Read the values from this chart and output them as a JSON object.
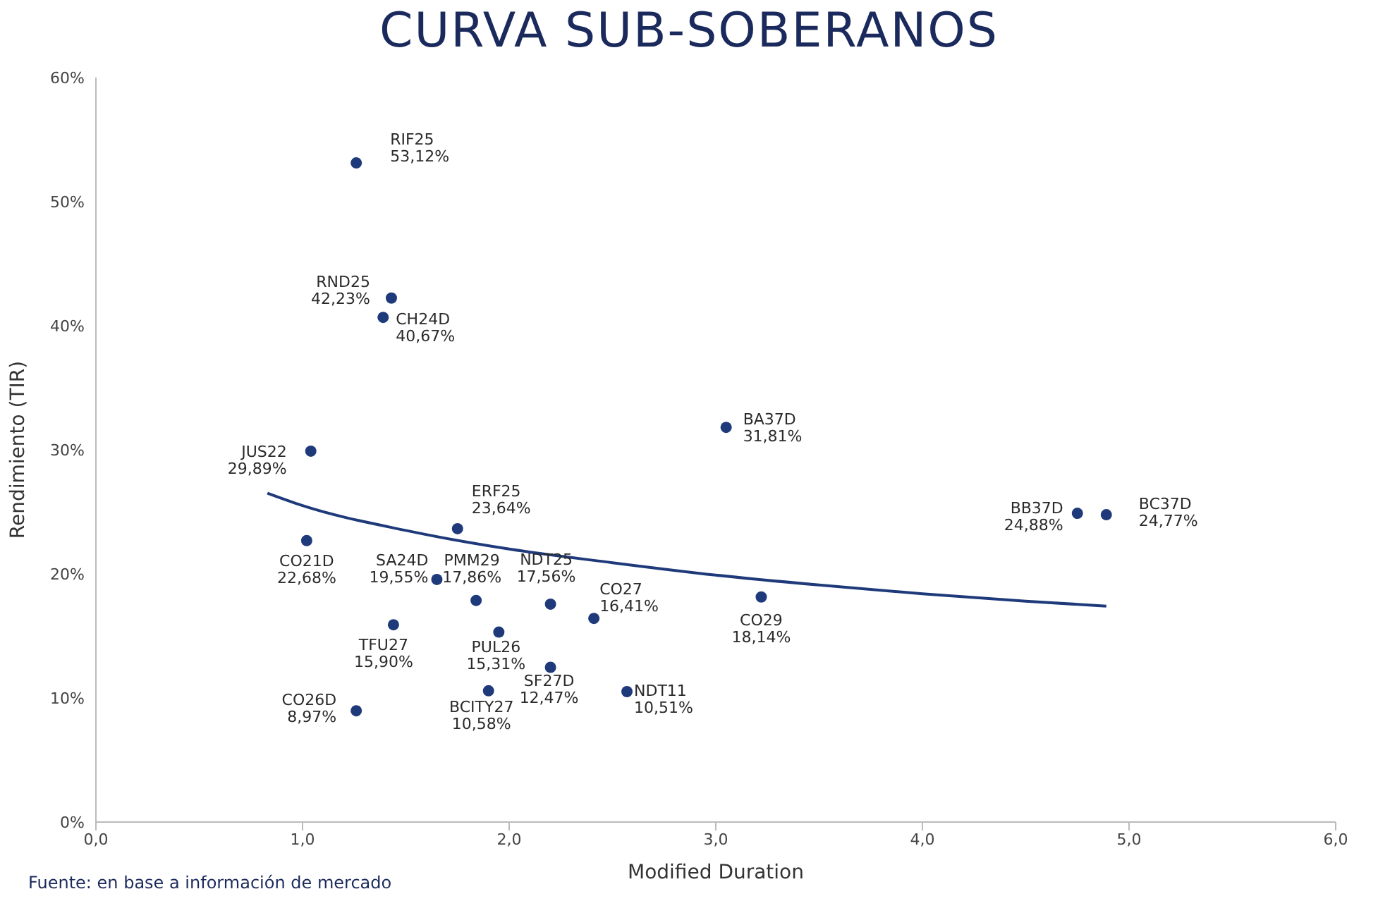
{
  "chart_data": {
    "type": "scatter",
    "title": "CURVA SUB-SOBERANOS",
    "xlabel": "Modified Duration",
    "ylabel": "Rendimiento (TIR)",
    "xlim": [
      0,
      6
    ],
    "xticks": [
      {
        "value": 0,
        "label": "0,0"
      },
      {
        "value": 1,
        "label": "1,0"
      },
      {
        "value": 2,
        "label": "2,0"
      },
      {
        "value": 3,
        "label": "3,0"
      },
      {
        "value": 4,
        "label": "4,0"
      },
      {
        "value": 5,
        "label": "5,0"
      },
      {
        "value": 6,
        "label": "6,0"
      }
    ],
    "ylim": [
      0,
      60
    ],
    "yticks": [
      {
        "value": 0,
        "label": "0%"
      },
      {
        "value": 10,
        "label": "10%"
      },
      {
        "value": 20,
        "label": "20%"
      },
      {
        "value": 30,
        "label": "30%"
      },
      {
        "value": 40,
        "label": "40%"
      },
      {
        "value": 50,
        "label": "50%"
      },
      {
        "value": 60,
        "label": "60%"
      }
    ],
    "grid": false,
    "legend": false,
    "marker": "circle",
    "series": [
      {
        "color": "#1f3a7a",
        "x": [
          1.26,
          1.43,
          1.39,
          1.04,
          1.02,
          1.75,
          1.65,
          1.84,
          2.2,
          2.41,
          3.22,
          1.44,
          1.95,
          2.2,
          2.57,
          1.9,
          1.26,
          3.05,
          4.75,
          4.89
        ],
        "values": [
          53.12,
          42.23,
          40.67,
          29.89,
          22.68,
          23.64,
          19.55,
          17.86,
          17.56,
          16.41,
          18.14,
          15.9,
          15.31,
          12.47,
          10.51,
          10.58,
          8.97,
          31.81,
          24.88,
          24.77
        ],
        "value_labels": [
          "53,12%",
          "42,23%",
          "40,67%",
          "29,89%",
          "22,68%",
          "23,64%",
          "19,55%",
          "17,86%",
          "17,56%",
          "16,41%",
          "18,14%",
          "15,90%",
          "15,31%",
          "12,47%",
          "10,51%",
          "10,58%",
          "8,97%",
          "31,81%",
          "24,88%",
          "24,77%"
        ]
      },
      {
        "type": "line",
        "marker": "none",
        "color": "#1f3a7a",
        "x": [
          0.83,
          1.0,
          1.5,
          2.0,
          2.5,
          3.0,
          3.5,
          4.0,
          4.5,
          4.89
        ],
        "values": [
          26.5,
          25.5,
          23.5,
          22.0,
          20.9,
          19.9,
          19.1,
          18.4,
          17.8,
          17.4
        ]
      }
    ],
    "annotations": [
      {
        "text": "RIF25",
        "x": 1.26,
        "y": 53.12
      },
      {
        "text": "RND25",
        "x": 1.43,
        "y": 42.23
      },
      {
        "text": "CH24D",
        "x": 1.39,
        "y": 40.67
      },
      {
        "text": "JUS22",
        "x": 1.04,
        "y": 29.89
      },
      {
        "text": "CO21D",
        "x": 1.02,
        "y": 22.68
      },
      {
        "text": "ERF25",
        "x": 1.75,
        "y": 23.64
      },
      {
        "text": "SA24D",
        "x": 1.65,
        "y": 19.55
      },
      {
        "text": "PMM29",
        "x": 1.84,
        "y": 17.86
      },
      {
        "text": "NDT25",
        "x": 2.2,
        "y": 17.56
      },
      {
        "text": "CO27",
        "x": 2.41,
        "y": 16.41
      },
      {
        "text": "CO29",
        "x": 3.22,
        "y": 18.14
      },
      {
        "text": "TFU27",
        "x": 1.44,
        "y": 15.9
      },
      {
        "text": "PUL26",
        "x": 1.95,
        "y": 15.31
      },
      {
        "text": "SF27D",
        "x": 2.2,
        "y": 12.47
      },
      {
        "text": "NDT11",
        "x": 2.57,
        "y": 10.51
      },
      {
        "text": "BCITY27",
        "x": 1.9,
        "y": 10.58
      },
      {
        "text": "CO26D",
        "x": 1.26,
        "y": 8.97
      },
      {
        "text": "BA37D",
        "x": 3.05,
        "y": 31.81
      },
      {
        "text": "BB37D",
        "x": 4.75,
        "y": 24.88
      },
      {
        "text": "BC37D",
        "x": 4.89,
        "y": 24.77
      },
      "Fuente: en base a información de mercado"
    ]
  }
}
